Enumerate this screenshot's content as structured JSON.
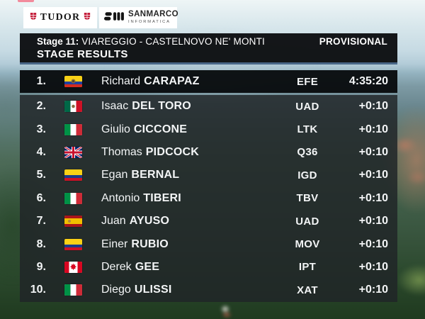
{
  "broadcast": {
    "top_left_bar_color": "#f2788c"
  },
  "sponsors": {
    "tudor": {
      "name": "TUDOR"
    },
    "sanmarco": {
      "name": "SANMARCO",
      "subtitle": "INFORMATICA"
    }
  },
  "header": {
    "stage_label": "Stage 11:",
    "stage_route": " VIAREGGIO - CASTELNOVO NE' MONTI",
    "status": "PROVISIONAL",
    "title": "STAGE RESULTS"
  },
  "results": [
    {
      "rank": "1.",
      "country": "ecuador",
      "first": "Richard",
      "last": "CARAPAZ",
      "team": "EFE",
      "time": "4:35:20",
      "leader": true
    },
    {
      "rank": "2.",
      "country": "mexico",
      "first": "Isaac",
      "last": "DEL TORO",
      "team": "UAD",
      "time": "+0:10"
    },
    {
      "rank": "3.",
      "country": "italy",
      "first": "Giulio",
      "last": "CICCONE",
      "team": "LTK",
      "time": "+0:10"
    },
    {
      "rank": "4.",
      "country": "great-britain",
      "first": "Thomas",
      "last": "PIDCOCK",
      "team": "Q36",
      "time": "+0:10"
    },
    {
      "rank": "5.",
      "country": "colombia",
      "first": "Egan",
      "last": "BERNAL",
      "team": "IGD",
      "time": "+0:10"
    },
    {
      "rank": "6.",
      "country": "italy",
      "first": "Antonio",
      "last": "TIBERI",
      "team": "TBV",
      "time": "+0:10"
    },
    {
      "rank": "7.",
      "country": "spain",
      "first": "Juan",
      "last": "AYUSO",
      "team": "UAD",
      "time": "+0:10"
    },
    {
      "rank": "8.",
      "country": "colombia",
      "first": "Einer",
      "last": "RUBIO",
      "team": "MOV",
      "time": "+0:10"
    },
    {
      "rank": "9.",
      "country": "canada",
      "first": "Derek",
      "last": "GEE",
      "team": "IPT",
      "time": "+0:10"
    },
    {
      "rank": "10.",
      "country": "italy",
      "first": "Diego",
      "last": "ULISSI",
      "team": "XAT",
      "time": "+0:10"
    }
  ],
  "colors": {
    "accent_line": "#3c5b7e",
    "header_bg": "rgba(13,16,18,0.97)",
    "leader_row_bg": "rgba(8,11,14,0.96)",
    "row_bg": "rgba(32,37,39,0.84)"
  }
}
